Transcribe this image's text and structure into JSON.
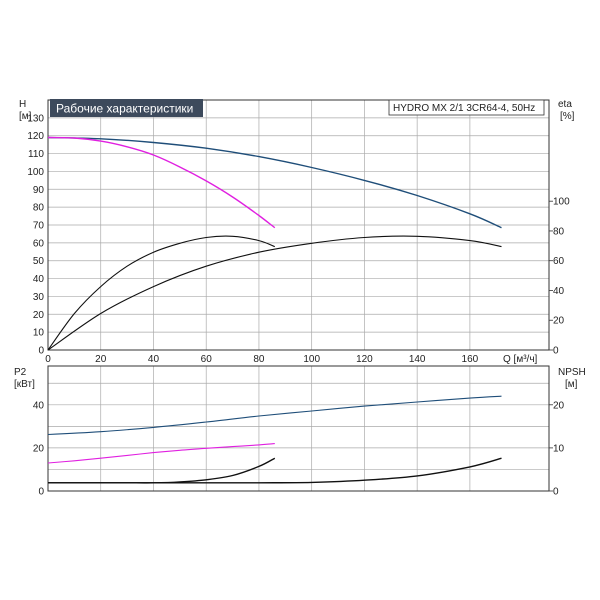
{
  "chart_data": {
    "type": "line",
    "title": "Рабочие характеристики",
    "model_label": "HYDRO MX 2/1 3CR64-4, 50Hz",
    "colors": {
      "title_bg": "#3d4a5c",
      "dark_blue": "#1f4e79",
      "magenta": "#e020e0",
      "black": "#111111",
      "grid": "#aaaaaa"
    },
    "top": {
      "h_axis": {
        "label": "H",
        "unit": "[м]",
        "ylim": [
          0,
          140
        ],
        "ticks": [
          0,
          10,
          20,
          30,
          40,
          50,
          60,
          70,
          80,
          90,
          100,
          110,
          120,
          130
        ]
      },
      "eta_axis": {
        "label": "eta",
        "unit": "[%]",
        "ylim": [
          0,
          168
        ],
        "ticks": [
          0,
          20,
          40,
          60,
          80,
          100
        ]
      },
      "x_axis": {
        "label": "Q [м³/ч]",
        "xlim": [
          0,
          190
        ],
        "ticks": [
          0,
          20,
          40,
          60,
          80,
          100,
          120,
          140,
          160
        ]
      },
      "series": [
        {
          "id": "h_two_pumps",
          "axis": "h",
          "color": "dark_blue",
          "x": [
            0,
            20,
            40,
            60,
            80,
            100,
            120,
            140,
            160,
            172
          ],
          "y": [
            119,
            118.3,
            116.2,
            113,
            108.3,
            102.2,
            95,
            86.5,
            76.3,
            68.5
          ]
        },
        {
          "id": "h_one_pump",
          "axis": "h",
          "color": "magenta",
          "x": [
            0,
            10,
            20,
            30,
            40,
            50,
            60,
            70,
            80,
            86
          ],
          "y": [
            119,
            118.7,
            117,
            113.8,
            109.2,
            102.5,
            94.7,
            85.7,
            75.3,
            68.5
          ]
        },
        {
          "id": "eta_two_pumps",
          "axis": "eta",
          "color": "black",
          "x": [
            0,
            20,
            40,
            60,
            80,
            100,
            120,
            140,
            160,
            172
          ],
          "y": [
            0,
            24.5,
            42.6,
            56.3,
            65.7,
            71.7,
            75.6,
            76.4,
            73.5,
            69.5
          ]
        },
        {
          "id": "eta_one_pump",
          "axis": "eta",
          "color": "black",
          "x": [
            0,
            10,
            20,
            30,
            40,
            50,
            60,
            70,
            80,
            86
          ],
          "y": [
            0,
            24.5,
            42.6,
            56.3,
            65.7,
            71.7,
            75.6,
            76.4,
            73.5,
            69.5
          ]
        }
      ]
    },
    "bottom": {
      "p2_axis": {
        "label": "P2",
        "unit": "[кВт]",
        "ylim": [
          0,
          58
        ],
        "ticks": [
          0,
          20,
          40
        ]
      },
      "npsh_axis": {
        "label": "NPSH",
        "unit": "[м]",
        "ylim": [
          0,
          29
        ],
        "ticks": [
          0,
          10,
          20
        ]
      },
      "x_axis": {
        "xlim": [
          0,
          190
        ],
        "ticks": [
          0,
          20,
          40,
          60,
          80,
          100,
          120,
          140,
          160
        ]
      },
      "series": [
        {
          "id": "p2_two_pumps",
          "axis": "p2",
          "color": "dark_blue",
          "x": [
            0,
            20,
            40,
            60,
            80,
            100,
            120,
            140,
            160,
            172
          ],
          "y": [
            26.2,
            27.5,
            29.5,
            32,
            34.8,
            37.1,
            39.4,
            41.3,
            43.1,
            44
          ]
        },
        {
          "id": "p2_one_pump",
          "axis": "p2",
          "color": "magenta",
          "x": [
            0,
            10,
            20,
            30,
            40,
            50,
            60,
            70,
            80,
            86
          ],
          "y": [
            13,
            14,
            15.2,
            16.5,
            17.8,
            18.9,
            19.8,
            20.6,
            21.4,
            22
          ]
        },
        {
          "id": "npsh_two_pumps",
          "axis": "npsh",
          "color": "black",
          "x": [
            0,
            40,
            60,
            80,
            100,
            120,
            140,
            160,
            172
          ],
          "y": [
            1.9,
            1.9,
            1.9,
            1.9,
            2,
            2.5,
            3.5,
            5.6,
            7.6
          ]
        },
        {
          "id": "npsh_one_pump",
          "axis": "npsh",
          "color": "black",
          "x": [
            0,
            20,
            30,
            40,
            50,
            60,
            70,
            80,
            86
          ],
          "y": [
            1.9,
            1.9,
            1.9,
            1.9,
            2.1,
            2.6,
            3.6,
            5.7,
            7.6
          ]
        }
      ]
    }
  }
}
